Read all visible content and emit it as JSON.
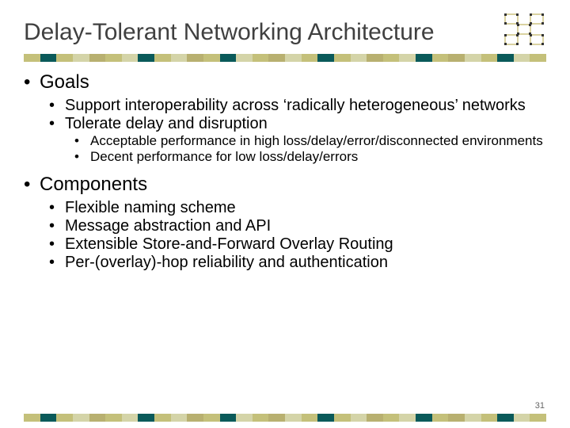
{
  "title": "Delay-Tolerant Networking Architecture",
  "page_number": "31",
  "stripe_colors": [
    "#c4c07a",
    "#0a5a5a",
    "#c4c07a",
    "#d4d4a8",
    "#b8b070",
    "#c4c07a",
    "#d4d4a8",
    "#0a5a5a",
    "#c4c07a",
    "#d4d4a8",
    "#b8b070",
    "#c4c07a",
    "#0a5a5a",
    "#d4d4a8",
    "#c4c07a",
    "#b8b070",
    "#d4d4a8",
    "#c4c07a",
    "#0a5a5a",
    "#c4c07a",
    "#d4d4a8",
    "#b8b070",
    "#c4c07a",
    "#d4d4a8",
    "#0a5a5a",
    "#c4c07a",
    "#b8b070",
    "#d4d4a8",
    "#c4c07a",
    "#0a5a5a",
    "#d4d4a8",
    "#c4c07a"
  ],
  "bullets": {
    "goals_label": "Goals",
    "goals_sub1": "Support interoperability across ‘radically heterogeneous’ networks",
    "goals_sub2": "Tolerate delay and disruption",
    "goals_sub2_a": "Acceptable performance in high loss/delay/error/disconnected environments",
    "goals_sub2_b": "Decent performance for low loss/delay/errors",
    "components_label": "Components",
    "comp_1": "Flexible naming scheme",
    "comp_2": "Message abstraction and API",
    "comp_3": "Extensible Store-and-Forward Overlay Routing",
    "comp_4": "Per-(overlay)-hop reliability and authentication"
  },
  "typography": {
    "title_fontsize": 30,
    "level1_fontsize": 24,
    "level2_fontsize": 20,
    "level3_fontsize": 17,
    "title_color": "#404040",
    "text_color": "#000000"
  }
}
